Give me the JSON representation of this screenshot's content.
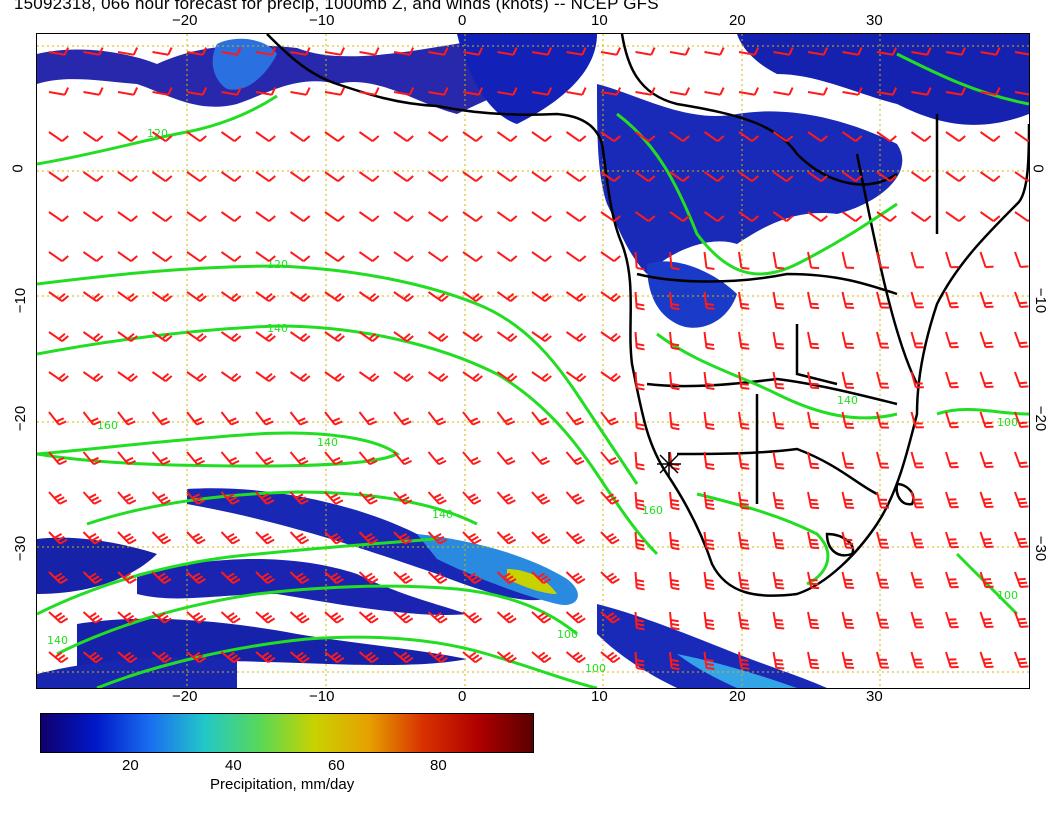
{
  "title": "15092318, 066 hour forecast for precip, 1000mb Z, and winds (knots) -- NCEP GFS",
  "axes": {
    "top_lon": [
      "−20",
      "−10",
      "0",
      "10",
      "20",
      "30"
    ],
    "bottom_lon": [
      "−20",
      "−10",
      "0",
      "10",
      "20",
      "30"
    ],
    "left_lat": [
      "0",
      "−10",
      "−20",
      "−30"
    ],
    "right_lat": [
      "0",
      "−10",
      "−20",
      "−30"
    ]
  },
  "contour_labels": [
    "120",
    "140",
    "160",
    "140",
    "120",
    "100",
    "140",
    "160",
    "100",
    "140",
    "100",
    "140",
    "100"
  ],
  "colorbar": {
    "title": "Precipitation, mm/day",
    "ticks": [
      "20",
      "40",
      "60",
      "80"
    ],
    "colors": [
      "#10006e",
      "#0018c8",
      "#1a6ef0",
      "#22c8c8",
      "#58d858",
      "#c8d200",
      "#e6a000",
      "#d83000",
      "#b00000",
      "#5a0000"
    ]
  },
  "colors": {
    "wind_barb": "#ff1a1a",
    "height_contour": "#22dd22",
    "coastline": "#000000",
    "grid": "#d4b400"
  }
}
